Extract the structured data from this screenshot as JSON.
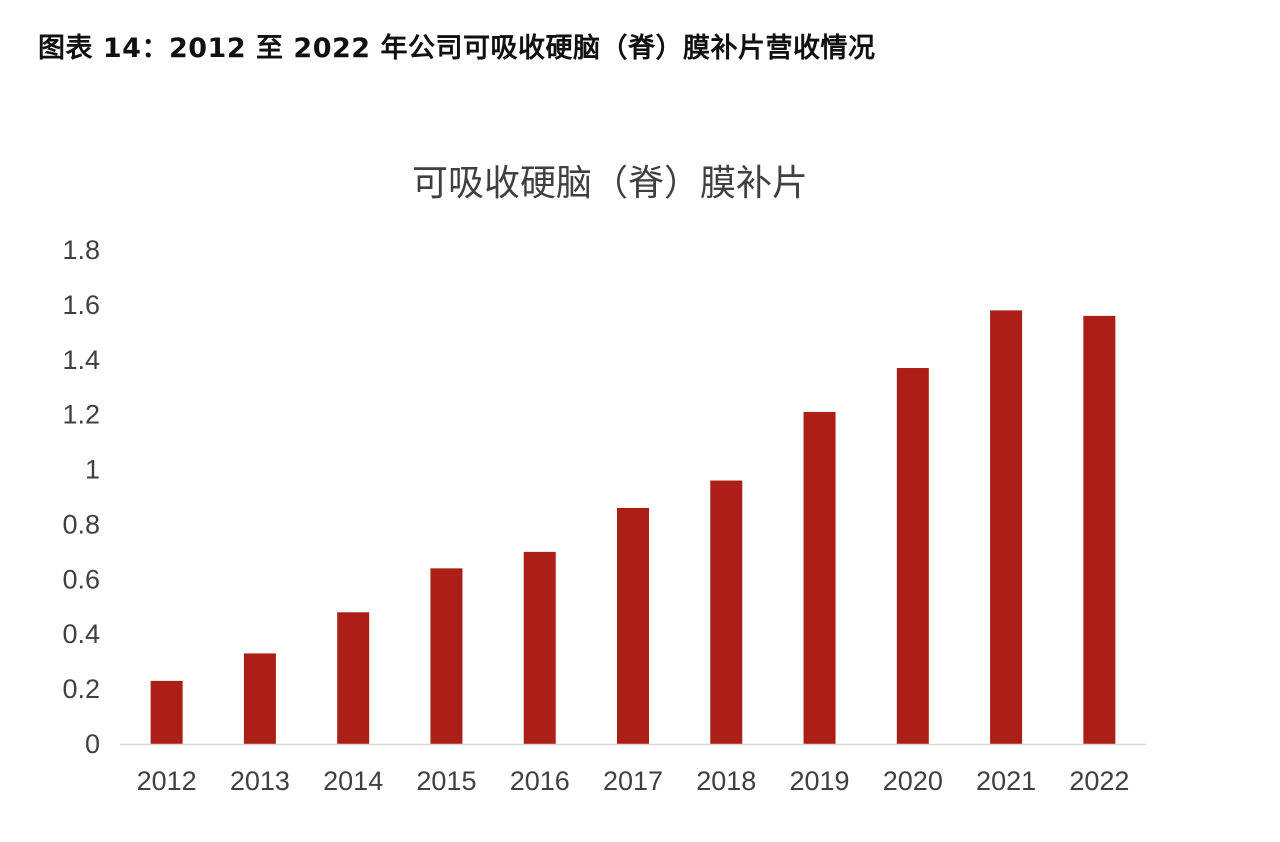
{
  "caption": "图表 14：2012 至 2022 年公司可吸收硬脑（脊）膜补片营收情况",
  "colors": {
    "bar": "#ab1f17",
    "axis": "#d9d9d9",
    "text": "#404040"
  },
  "chart_data": {
    "type": "bar",
    "title": "可吸收硬脑（脊）膜补片",
    "xlabel": "",
    "ylabel": "",
    "categories": [
      "2012",
      "2013",
      "2014",
      "2015",
      "2016",
      "2017",
      "2018",
      "2019",
      "2020",
      "2021",
      "2022"
    ],
    "values": [
      0.23,
      0.33,
      0.48,
      0.64,
      0.7,
      0.86,
      0.96,
      1.21,
      1.37,
      1.58,
      1.56
    ],
    "ylim": [
      0,
      1.8
    ],
    "yticks": [
      "0",
      "0.2",
      "0.4",
      "0.6",
      "0.8",
      "1",
      "1.2",
      "1.4",
      "1.6",
      "1.8"
    ],
    "grid": false,
    "legend": "none"
  }
}
